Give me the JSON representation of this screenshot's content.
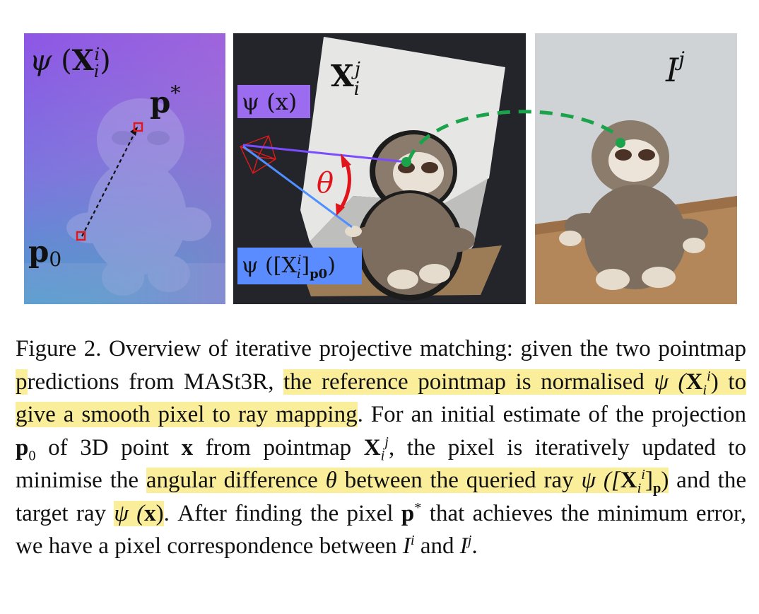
{
  "figure": {
    "panel_left": {
      "label_psi": "ψ",
      "label_X": "X",
      "label_X_sub": "i",
      "label_X_sup": "i",
      "label_pstar": "p",
      "label_pstar_sup": "*",
      "label_p0": "p",
      "label_p0_sub": "0",
      "colors": {
        "gradient_top": "#9b59e0",
        "gradient_bottom": "#3aa3c9",
        "marker": "#e01a1a"
      }
    },
    "panel_middle": {
      "label_X": "X",
      "label_X_sub": "i",
      "label_X_sup": "j",
      "label_psi_x": "ψ (x)",
      "label_theta": "θ",
      "label_psi_p0": "ψ ([X",
      "label_psi_p0_sub": "i",
      "label_psi_p0_sup": "i",
      "label_psi_p0_tail": "]",
      "label_psi_p0_sub2": "p0",
      "label_psi_p0_close": ")",
      "colors": {
        "background": "#23252a",
        "ray_target": "#7a4bff",
        "ray_query": "#4f8fff",
        "arrow": "#e0141a",
        "box_top": "#9b6cf0",
        "box_bottom": "#5a8cff"
      }
    },
    "panel_right": {
      "label_I": "I",
      "label_I_sup": "j",
      "colors": {
        "wall": "#cfd3d6",
        "table": "#b3875a",
        "match": "#1aa34a"
      }
    }
  },
  "caption": {
    "s1": "Figure 2. Overview of iterative projective matching: given the two pointmap ",
    "s2": "p",
    "s3": "redictions from MASt3R, ",
    "s4": "the reference pointmap is normalised ",
    "s5": "ψ (",
    "s6": "X",
    "s7": "i",
    "s8": "i",
    "s9": ")",
    "s10": " to give a smooth pixel to ray mapping",
    "s11": ". For an initial estimate of the projection ",
    "s12": "p",
    "s13": "0",
    "s14": " of 3D point ",
    "s15": "x",
    "s16": " from pointmap ",
    "s17": "X",
    "s18": "i",
    "s19": "j",
    "s20": ", the pixel is iteratively updated to minimise the ",
    "s21": "angular difference ",
    "s22": "θ",
    "s23": " between the queried ray ",
    "s24": "ψ ([",
    "s25": "X",
    "s26": "i",
    "s27": "i",
    "s28": "]",
    "s29": "p",
    "s30": ")",
    "s31": " and the target ray ",
    "s32": "ψ (",
    "s33": "x",
    "s34": ")",
    "s35": ". After finding the pixel ",
    "s36": "p",
    "s37": "*",
    "s38": " that achieves the minimum error, we have a pixel correspondence between ",
    "s39": "I",
    "s40": "i",
    "s41": " and ",
    "s42": "I",
    "s43": "j",
    "s44": "."
  }
}
